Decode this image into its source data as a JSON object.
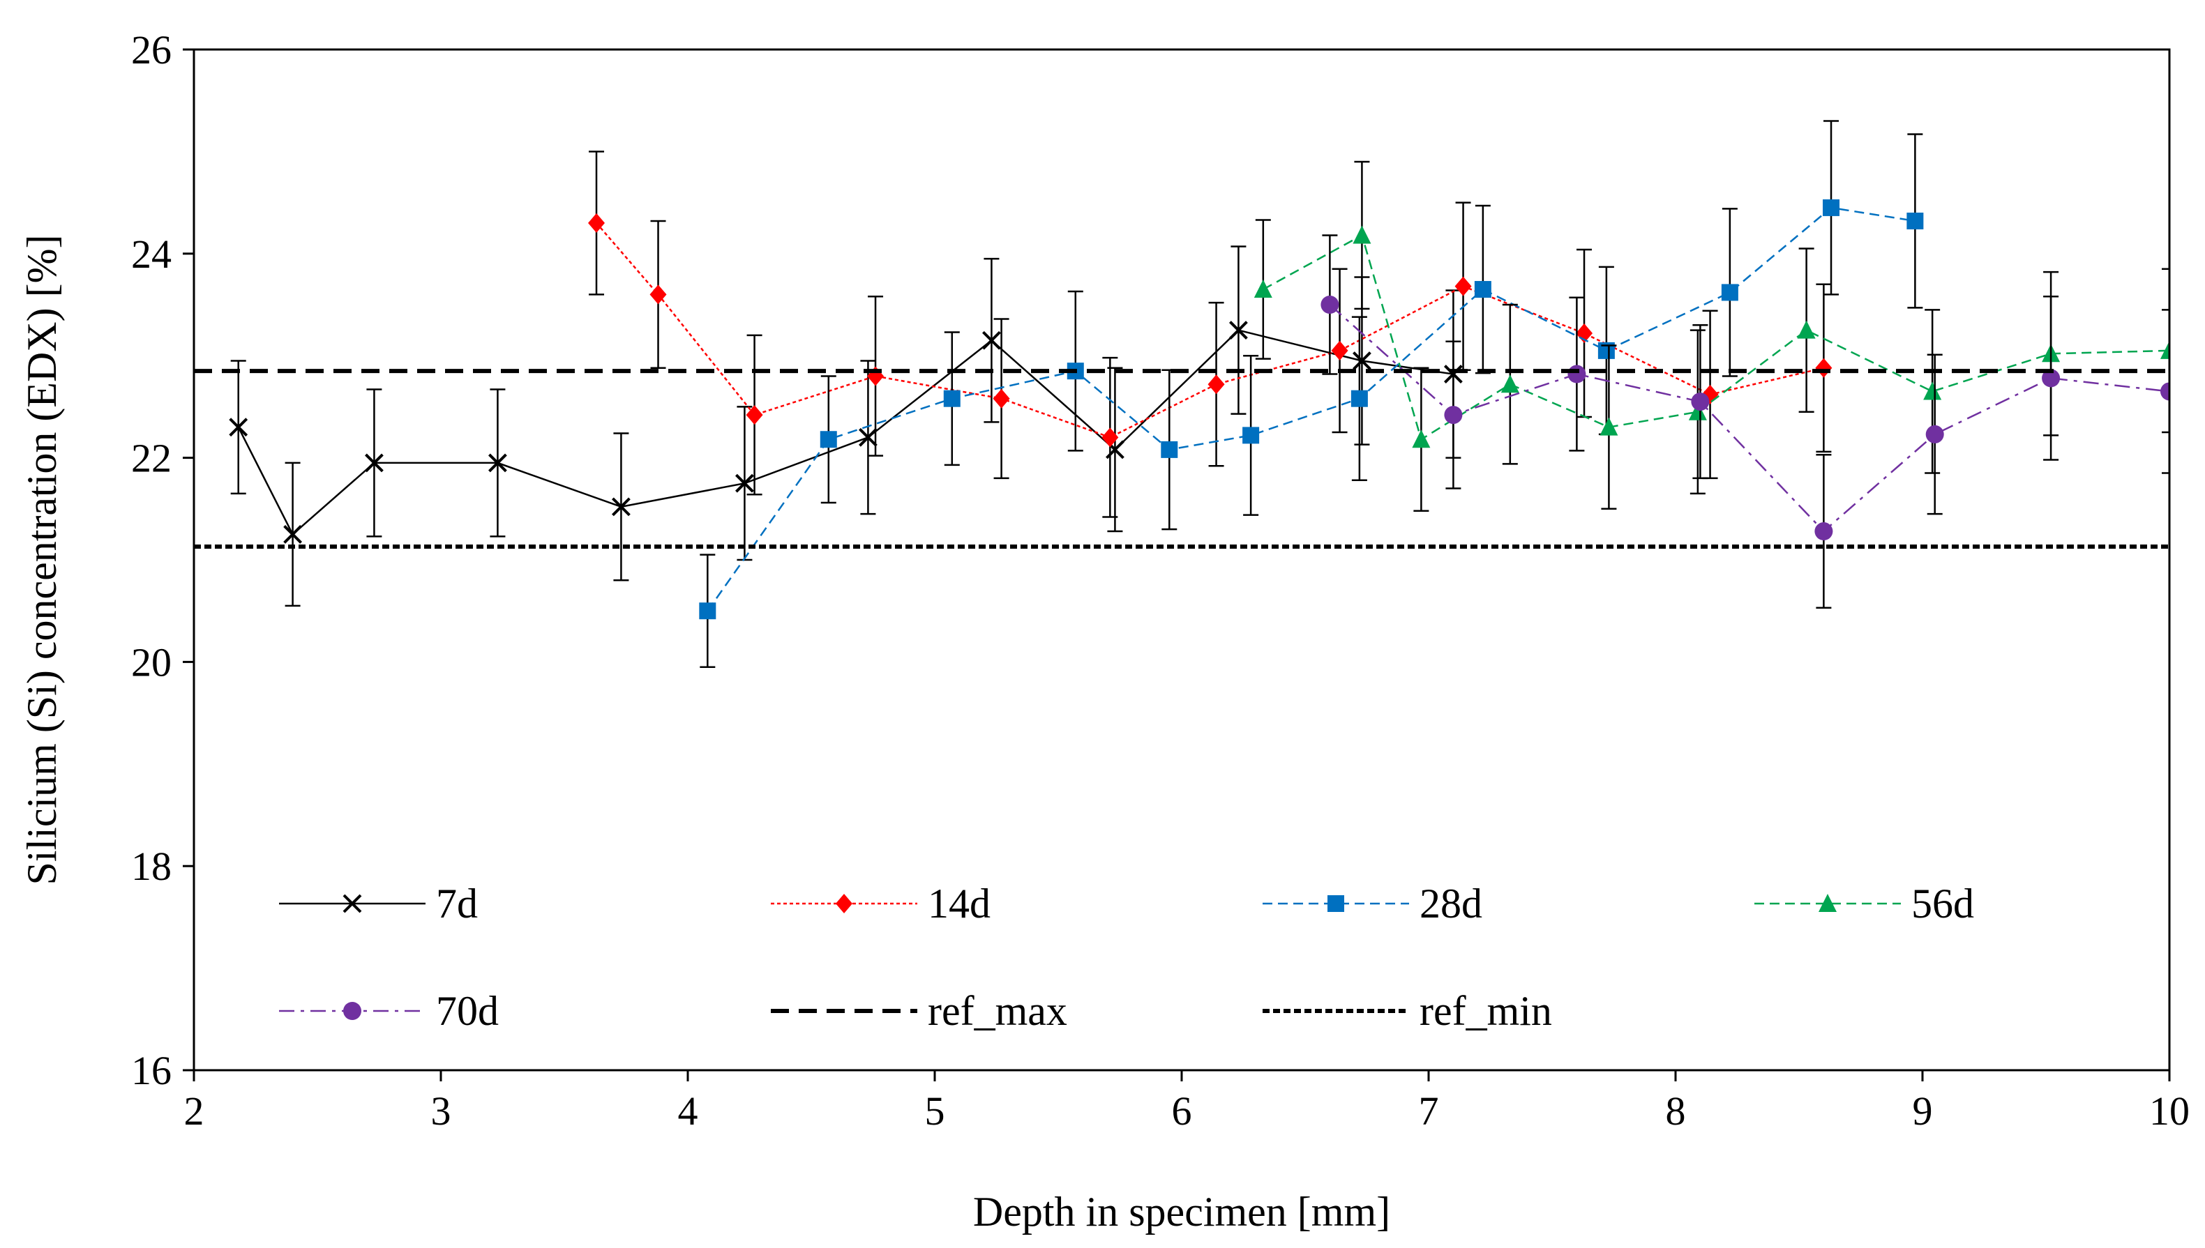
{
  "chart_data": {
    "type": "line",
    "title": "",
    "xlabel": "Depth in specimen [mm]",
    "ylabel": "Silicium (Si) concentration (EDX) [%]",
    "xlim": [
      2,
      10
    ],
    "ylim": [
      16,
      26
    ],
    "xticks": [
      2,
      3,
      4,
      5,
      6,
      7,
      8,
      9,
      10
    ],
    "yticks": [
      16,
      18,
      20,
      22,
      24,
      26
    ],
    "grid": false,
    "legend_position": "bottom-inside",
    "series": [
      {
        "name": "7d",
        "color": "#000000",
        "marker": "x",
        "style": "solid",
        "x": [
          2.18,
          2.4,
          2.73,
          3.23,
          3.73,
          4.23,
          4.73,
          5.23,
          5.73,
          6.23,
          6.73,
          7.1
        ],
        "y": [
          22.3,
          21.25,
          21.95,
          21.95,
          21.52,
          21.75,
          22.2,
          23.15,
          22.08,
          23.25,
          22.95,
          22.82
        ],
        "err": [
          0.65,
          0.7,
          0.72,
          0.72,
          0.72,
          0.75,
          0.75,
          0.8,
          0.8,
          0.82,
          0.82,
          0.82
        ]
      },
      {
        "name": "14d",
        "color": "#ff0000",
        "marker": "diamond",
        "style": "dotted",
        "x": [
          3.63,
          3.88,
          4.27,
          4.76,
          5.27,
          5.71,
          6.14,
          6.64,
          7.14,
          7.63,
          8.14,
          8.6
        ],
        "y": [
          24.3,
          23.6,
          22.42,
          22.8,
          22.58,
          22.2,
          22.72,
          23.05,
          23.68,
          23.22,
          22.62,
          22.88
        ],
        "err": [
          0.7,
          0.72,
          0.78,
          0.78,
          0.78,
          0.78,
          0.8,
          0.8,
          0.82,
          0.82,
          0.82,
          0.82
        ]
      },
      {
        "name": "28d",
        "color": "#0070c0",
        "marker": "square",
        "style": "dashed",
        "x": [
          4.08,
          4.57,
          5.07,
          5.57,
          5.95,
          6.28,
          6.72,
          7.22,
          7.72,
          8.22,
          8.63,
          8.97
        ],
        "y": [
          20.5,
          22.18,
          22.58,
          22.85,
          22.08,
          22.22,
          22.58,
          23.65,
          23.05,
          23.62,
          24.45,
          24.32
        ],
        "err": [
          0.55,
          0.62,
          0.65,
          0.78,
          0.78,
          0.78,
          0.8,
          0.82,
          0.82,
          0.82,
          0.85,
          0.85
        ]
      },
      {
        "name": "56d",
        "color": "#00a550",
        "marker": "triangle",
        "style": "dashed",
        "x": [
          6.33,
          6.73,
          6.97,
          7.33,
          7.73,
          8.09,
          8.53,
          9.04,
          9.52,
          10.0
        ],
        "y": [
          23.65,
          24.18,
          22.18,
          22.72,
          22.3,
          22.45,
          23.25,
          22.65,
          23.02,
          23.05
        ],
        "err": [
          0.68,
          0.72,
          0.7,
          0.78,
          0.8,
          0.8,
          0.8,
          0.8,
          0.8,
          0.8
        ]
      },
      {
        "name": "70d",
        "color": "#7030a0",
        "marker": "circle",
        "style": "dashdot",
        "x": [
          6.6,
          7.1,
          7.6,
          8.1,
          8.6,
          9.05,
          9.52,
          10.0
        ],
        "y": [
          23.5,
          22.42,
          22.82,
          22.55,
          21.28,
          22.23,
          22.78,
          22.65
        ],
        "err": [
          0.68,
          0.72,
          0.75,
          0.75,
          0.75,
          0.78,
          0.8,
          0.8
        ]
      },
      {
        "name": "ref_max",
        "color": "#000000",
        "marker": "none",
        "style": "ref-dashed",
        "x": [
          2,
          10
        ],
        "y": [
          22.85,
          22.85
        ]
      },
      {
        "name": "ref_min",
        "color": "#000000",
        "marker": "none",
        "style": "ref-dotted",
        "x": [
          2,
          10
        ],
        "y": [
          21.13,
          21.13
        ]
      }
    ]
  }
}
